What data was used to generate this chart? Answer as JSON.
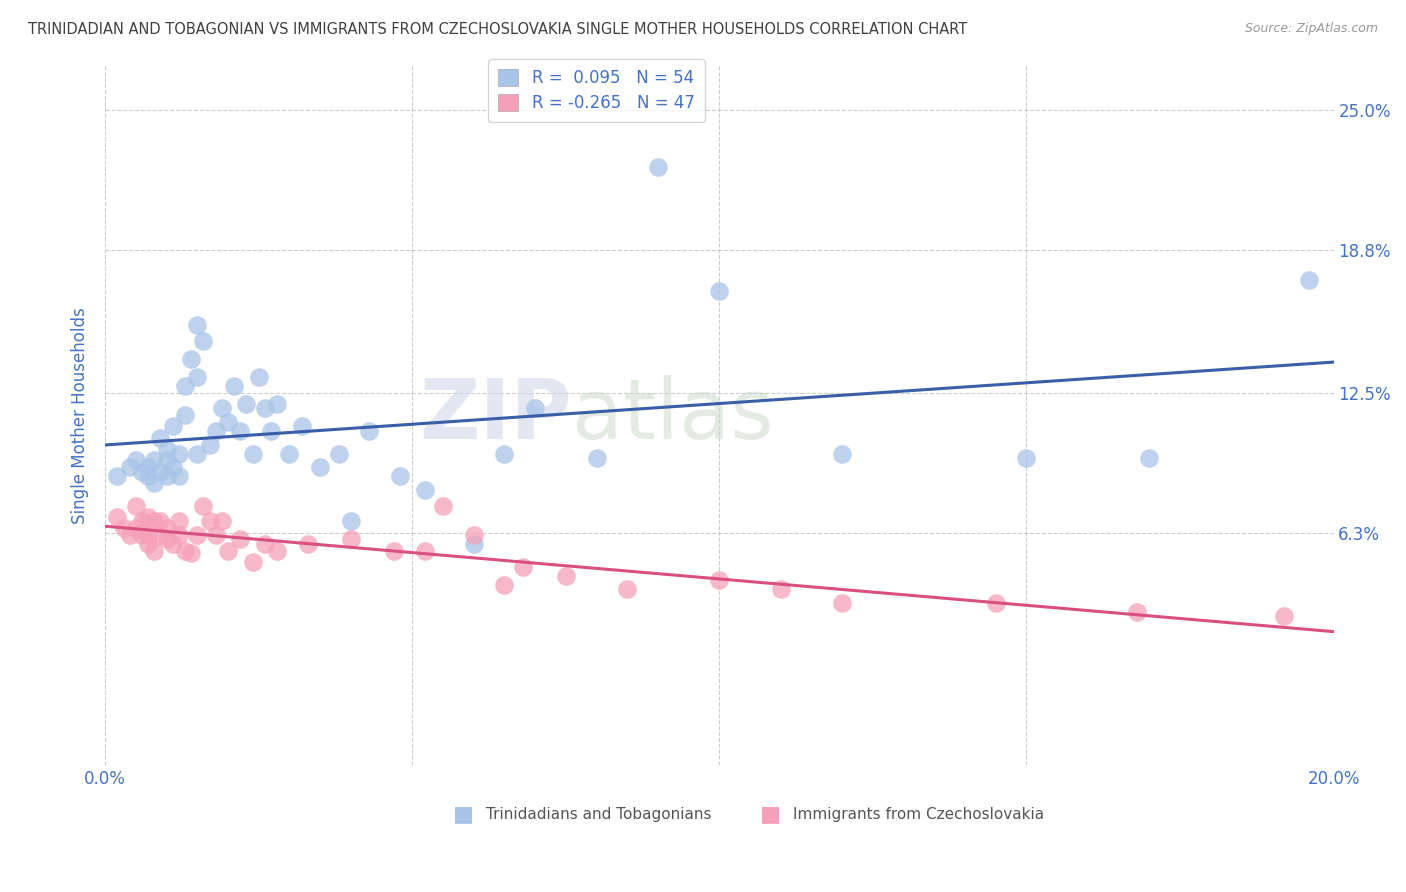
{
  "title": "TRINIDADIAN AND TOBAGONIAN VS IMMIGRANTS FROM CZECHOSLOVAKIA SINGLE MOTHER HOUSEHOLDS CORRELATION CHART",
  "source": "Source: ZipAtlas.com",
  "ylabel": "Single Mother Households",
  "x_min": 0.0,
  "x_max": 0.2,
  "y_min": -0.04,
  "y_max": 0.27,
  "y_ticks": [
    0.063,
    0.125,
    0.188,
    0.25
  ],
  "y_tick_labels": [
    "6.3%",
    "12.5%",
    "18.8%",
    "25.0%"
  ],
  "x_tick_left_label": "0.0%",
  "x_tick_right_label": "20.0%",
  "blue_R": 0.095,
  "blue_N": 54,
  "pink_R": -0.265,
  "pink_N": 47,
  "blue_color": "#a8c4e8",
  "pink_color": "#f5a0b8",
  "blue_line_color": "#3a5fa8",
  "pink_line_color": "#d85080",
  "legend_blue_label": "Trinidadians and Tobagonians",
  "legend_pink_label": "Immigrants from Czechoslovakia",
  "blue_scatter_x": [
    0.002,
    0.004,
    0.005,
    0.006,
    0.007,
    0.007,
    0.008,
    0.008,
    0.009,
    0.009,
    0.01,
    0.01,
    0.01,
    0.011,
    0.011,
    0.012,
    0.012,
    0.013,
    0.013,
    0.014,
    0.015,
    0.015,
    0.015,
    0.016,
    0.017,
    0.018,
    0.019,
    0.02,
    0.021,
    0.022,
    0.023,
    0.024,
    0.025,
    0.026,
    0.027,
    0.028,
    0.03,
    0.032,
    0.035,
    0.038,
    0.04,
    0.043,
    0.048,
    0.052,
    0.06,
    0.065,
    0.07,
    0.08,
    0.09,
    0.1,
    0.12,
    0.15,
    0.17,
    0.196
  ],
  "blue_scatter_y": [
    0.088,
    0.092,
    0.095,
    0.09,
    0.092,
    0.088,
    0.085,
    0.095,
    0.09,
    0.105,
    0.088,
    0.095,
    0.1,
    0.092,
    0.11,
    0.088,
    0.098,
    0.115,
    0.128,
    0.14,
    0.098,
    0.132,
    0.155,
    0.148,
    0.102,
    0.108,
    0.118,
    0.112,
    0.128,
    0.108,
    0.12,
    0.098,
    0.132,
    0.118,
    0.108,
    0.12,
    0.098,
    0.11,
    0.092,
    0.098,
    0.068,
    0.108,
    0.088,
    0.082,
    0.058,
    0.098,
    0.118,
    0.096,
    0.225,
    0.17,
    0.098,
    0.096,
    0.096,
    0.175
  ],
  "pink_scatter_x": [
    0.002,
    0.003,
    0.004,
    0.005,
    0.005,
    0.006,
    0.006,
    0.007,
    0.007,
    0.007,
    0.008,
    0.008,
    0.009,
    0.009,
    0.01,
    0.01,
    0.011,
    0.012,
    0.012,
    0.013,
    0.014,
    0.015,
    0.016,
    0.017,
    0.018,
    0.019,
    0.02,
    0.022,
    0.024,
    0.026,
    0.028,
    0.033,
    0.04,
    0.047,
    0.052,
    0.055,
    0.06,
    0.065,
    0.068,
    0.075,
    0.085,
    0.1,
    0.11,
    0.12,
    0.145,
    0.168,
    0.192
  ],
  "pink_scatter_y": [
    0.07,
    0.065,
    0.062,
    0.075,
    0.065,
    0.068,
    0.062,
    0.07,
    0.062,
    0.058,
    0.055,
    0.068,
    0.062,
    0.068,
    0.06,
    0.065,
    0.058,
    0.062,
    0.068,
    0.055,
    0.054,
    0.062,
    0.075,
    0.068,
    0.062,
    0.068,
    0.055,
    0.06,
    0.05,
    0.058,
    0.055,
    0.058,
    0.06,
    0.055,
    0.055,
    0.075,
    0.062,
    0.04,
    0.048,
    0.044,
    0.038,
    0.042,
    0.038,
    0.032,
    0.032,
    0.028,
    0.026
  ],
  "background_color": "#ffffff",
  "grid_color": "#cccccc",
  "title_color": "#404040",
  "right_axis_color": "#4472c4",
  "ylabel_color": "#4472c4"
}
